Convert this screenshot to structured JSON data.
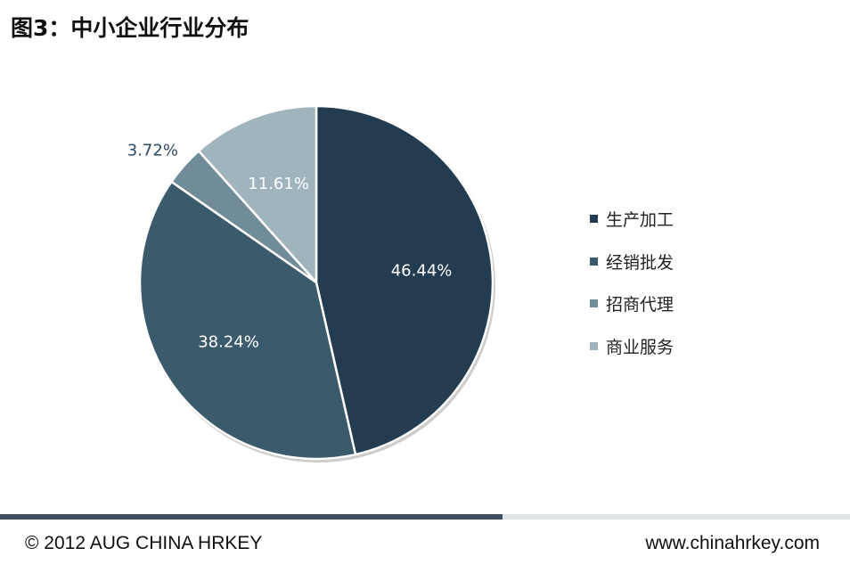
{
  "title": "图3：中小企业行业分布",
  "chart_data": {
    "type": "pie",
    "title": "图3：中小企业行业分布",
    "categories": [
      "生产加工",
      "经销批发",
      "招商代理",
      "商业服务"
    ],
    "values": [
      46.44,
      38.24,
      3.72,
      11.61
    ],
    "labels": [
      "46.44%",
      "38.24%",
      "3.72%",
      "11.61%"
    ],
    "colors": [
      "#233c4f",
      "#3b5a6b",
      "#6f8c98",
      "#a0b4bd"
    ],
    "legend_position": "right",
    "start": "top, clockwise"
  },
  "footer": {
    "copyright": "©  2012 AUG CHINA HRKEY",
    "website": "www.chinahrkey.com"
  }
}
